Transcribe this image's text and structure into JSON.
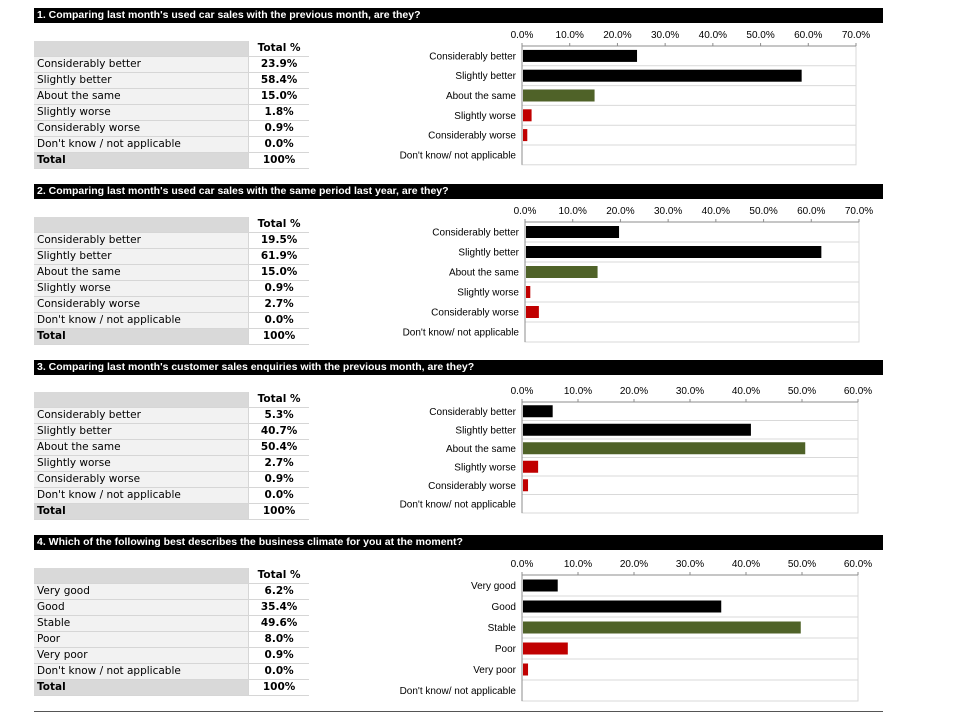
{
  "colors": {
    "dark": "#000000",
    "neutral": "#4f6228",
    "negative": "#c00000"
  },
  "sections": [
    {
      "question": "1. Comparing last month's used car sales with the previous month, are they?",
      "table": {
        "header": "Total %",
        "rows": [
          {
            "label": "Considerably better",
            "value": "23.9%"
          },
          {
            "label": "Slightly better",
            "value": "58.4%"
          },
          {
            "label": "About the same",
            "value": "15.0%"
          },
          {
            "label": "Slightly worse",
            "value": "1.8%"
          },
          {
            "label": "Considerably worse",
            "value": "0.9%"
          },
          {
            "label": "Don't know / not applicable",
            "value": "0.0%"
          }
        ],
        "total_label": "Total",
        "total_value": "100%"
      }
    },
    {
      "question": "2. Comparing last month's used car sales with the same period last year, are they?",
      "table": {
        "header": "Total %",
        "rows": [
          {
            "label": "Considerably better",
            "value": "19.5%"
          },
          {
            "label": "Slightly better",
            "value": "61.9%"
          },
          {
            "label": "About the same",
            "value": "15.0%"
          },
          {
            "label": "Slightly worse",
            "value": "0.9%"
          },
          {
            "label": "Considerably worse",
            "value": "2.7%"
          },
          {
            "label": "Don't know / not applicable",
            "value": "0.0%"
          }
        ],
        "total_label": "Total",
        "total_value": "100%"
      }
    },
    {
      "question": "3. Comparing last month's customer sales enquiries with the previous month, are they?",
      "table": {
        "header": "Total %",
        "rows": [
          {
            "label": "Considerably better",
            "value": "5.3%"
          },
          {
            "label": "Slightly better",
            "value": "40.7%"
          },
          {
            "label": "About the same",
            "value": "50.4%"
          },
          {
            "label": "Slightly worse",
            "value": "2.7%"
          },
          {
            "label": "Considerably worse",
            "value": "0.9%"
          },
          {
            "label": "Don't know / not applicable",
            "value": "0.0%"
          }
        ],
        "total_label": "Total",
        "total_value": "100%"
      }
    },
    {
      "question": "4. Which of the following best describes the business climate for you at the moment?",
      "table": {
        "header": "Total %",
        "rows": [
          {
            "label": "Very good",
            "value": "6.2%"
          },
          {
            "label": "Good",
            "value": "35.4%"
          },
          {
            "label": "Stable",
            "value": "49.6%"
          },
          {
            "label": "Poor",
            "value": "8.0%"
          },
          {
            "label": "Very poor",
            "value": "0.9%"
          },
          {
            "label": "Don't know / not applicable",
            "value": "0.0%"
          }
        ],
        "total_label": "Total",
        "total_value": "100%"
      }
    }
  ],
  "chart_data": [
    {
      "type": "bar",
      "orientation": "horizontal",
      "categories": [
        "Considerably better",
        "Slightly better",
        "About the same",
        "Slightly worse",
        "Considerably worse",
        "Don't know/ not applicable"
      ],
      "values": [
        23.9,
        58.4,
        15.0,
        1.8,
        0.9,
        0.0
      ],
      "bar_colors": [
        "dark",
        "dark",
        "neutral",
        "negative",
        "negative",
        "negative"
      ],
      "xlim": [
        0,
        70
      ],
      "ticks": [
        "0.0%",
        "10.0%",
        "20.0%",
        "30.0%",
        "40.0%",
        "50.0%",
        "60.0%",
        "70.0%"
      ],
      "tick_values": [
        0,
        10,
        20,
        30,
        40,
        50,
        60,
        70
      ],
      "axis_position": "top",
      "grid": true
    },
    {
      "type": "bar",
      "orientation": "horizontal",
      "categories": [
        "Considerably better",
        "Slightly better",
        "About the same",
        "Slightly worse",
        "Considerably worse",
        "Don't know/ not applicable"
      ],
      "values": [
        19.5,
        61.9,
        15.0,
        0.9,
        2.7,
        0.0
      ],
      "bar_colors": [
        "dark",
        "dark",
        "neutral",
        "negative",
        "negative",
        "negative"
      ],
      "xlim": [
        0,
        70
      ],
      "ticks": [
        "0.0%",
        "10.0%",
        "20.0%",
        "30.0%",
        "40.0%",
        "50.0%",
        "60.0%",
        "70.0%"
      ],
      "tick_values": [
        0,
        10,
        20,
        30,
        40,
        50,
        60,
        70
      ],
      "axis_position": "top",
      "grid": true
    },
    {
      "type": "bar",
      "orientation": "horizontal",
      "categories": [
        "Considerably better",
        "Slightly better",
        "About the same",
        "Slightly worse",
        "Considerably worse",
        "Don't know/ not applicable"
      ],
      "values": [
        5.3,
        40.7,
        50.4,
        2.7,
        0.9,
        0.0
      ],
      "bar_colors": [
        "dark",
        "dark",
        "neutral",
        "negative",
        "negative",
        "negative"
      ],
      "xlim": [
        0,
        60
      ],
      "ticks": [
        "0.0%",
        "10.0%",
        "20.0%",
        "30.0%",
        "40.0%",
        "50.0%",
        "60.0%"
      ],
      "tick_values": [
        0,
        10,
        20,
        30,
        40,
        50,
        60
      ],
      "axis_position": "top",
      "grid": true
    },
    {
      "type": "bar",
      "orientation": "horizontal",
      "categories": [
        "Very good",
        "Good",
        "Stable",
        "Poor",
        "Very poor",
        "Don't know/ not applicable"
      ],
      "values": [
        6.2,
        35.4,
        49.6,
        8.0,
        0.9,
        0.0
      ],
      "bar_colors": [
        "dark",
        "dark",
        "neutral",
        "negative",
        "negative",
        "negative"
      ],
      "xlim": [
        0,
        60
      ],
      "ticks": [
        "0.0%",
        "10.0%",
        "20.0%",
        "30.0%",
        "40.0%",
        "50.0%",
        "60.0%"
      ],
      "tick_values": [
        0,
        10,
        20,
        30,
        40,
        50,
        60
      ],
      "axis_position": "top",
      "grid": true
    }
  ]
}
